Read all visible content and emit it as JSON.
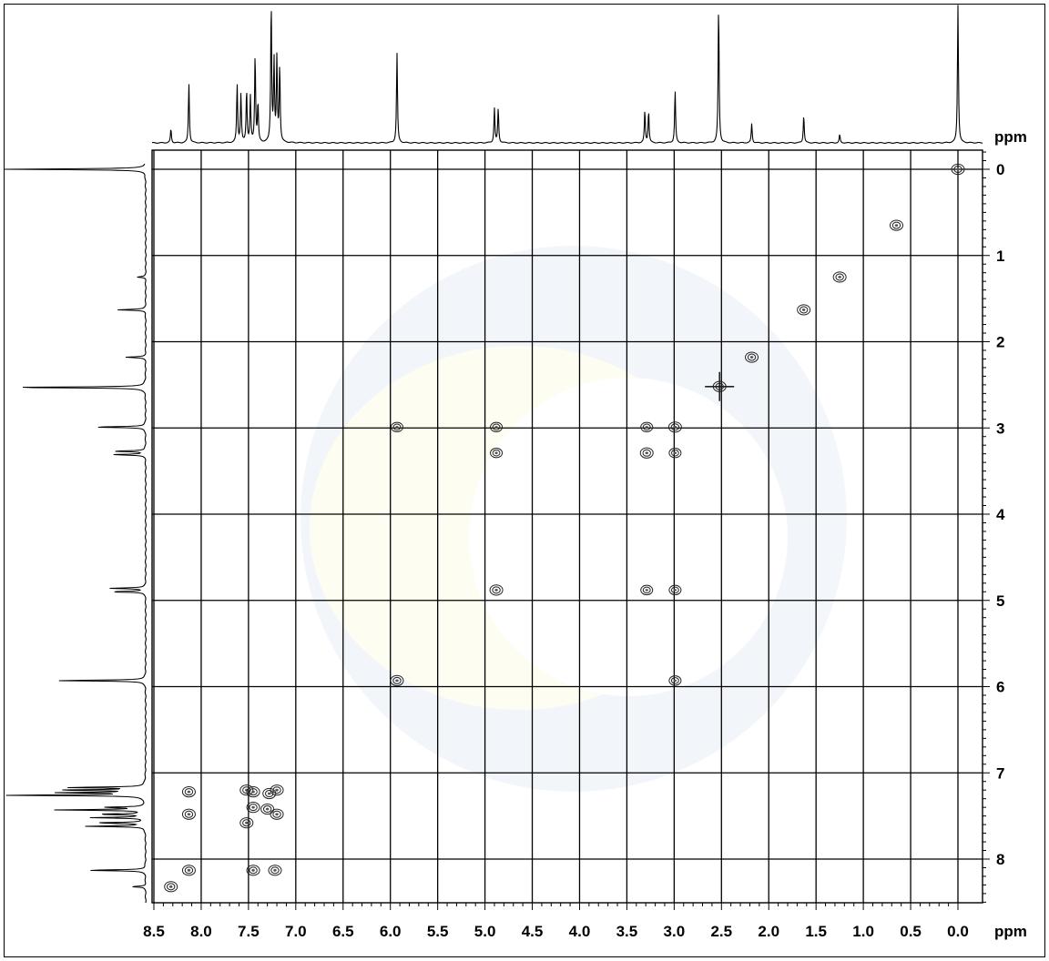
{
  "chart_data": {
    "type": "scatter",
    "subtype": "2D COSY NMR contour plot",
    "title": "",
    "xlabel": "ppm",
    "ylabel": "ppm",
    "x_axis": {
      "range": [
        8.5,
        -0.1
      ],
      "direction": "reversed",
      "tick_labels": [
        "8.5",
        "8.0",
        "7.5",
        "7.0",
        "6.5",
        "6.0",
        "5.5",
        "5.0",
        "4.5",
        "4.0",
        "3.5",
        "3.0",
        "2.5",
        "2.0",
        "1.5",
        "1.0",
        "0.5",
        "0.0"
      ]
    },
    "y_axis": {
      "range": [
        -0.1,
        8.5
      ],
      "direction": "downward",
      "position": "right",
      "tick_labels": [
        "0",
        "1",
        "2",
        "3",
        "4",
        "5",
        "6",
        "7",
        "8"
      ]
    },
    "grid": true,
    "projection_peaks": [
      {
        "ppm": 8.32,
        "height": 0.1
      },
      {
        "ppm": 8.13,
        "height": 0.43
      },
      {
        "ppm": 7.62,
        "height": 0.42
      },
      {
        "ppm": 7.58,
        "height": 0.35
      },
      {
        "ppm": 7.52,
        "height": 0.38
      },
      {
        "ppm": 7.48,
        "height": 0.33
      },
      {
        "ppm": 7.43,
        "height": 0.63
      },
      {
        "ppm": 7.4,
        "height": 0.28
      },
      {
        "ppm": 7.26,
        "height": 1.0
      },
      {
        "ppm": 7.23,
        "height": 0.58
      },
      {
        "ppm": 7.2,
        "height": 0.6
      },
      {
        "ppm": 7.17,
        "height": 0.55
      },
      {
        "ppm": 5.93,
        "height": 0.65
      },
      {
        "ppm": 4.9,
        "height": 0.25
      },
      {
        "ppm": 4.86,
        "height": 0.25
      },
      {
        "ppm": 3.31,
        "height": 0.23
      },
      {
        "ppm": 3.27,
        "height": 0.23
      },
      {
        "ppm": 2.99,
        "height": 0.38
      },
      {
        "ppm": 2.53,
        "height": 1.0
      },
      {
        "ppm": 2.18,
        "height": 0.14
      },
      {
        "ppm": 1.63,
        "height": 0.2
      },
      {
        "ppm": 1.25,
        "height": 0.06
      },
      {
        "ppm": 0.0,
        "height": 1.0
      }
    ],
    "cross_peaks": [
      {
        "x": 0.0,
        "y": 0.0
      },
      {
        "x": 0.65,
        "y": 0.65
      },
      {
        "x": 1.25,
        "y": 1.25
      },
      {
        "x": 1.63,
        "y": 1.63
      },
      {
        "x": 2.18,
        "y": 2.18
      },
      {
        "x": 2.52,
        "y": 2.52
      },
      {
        "x": 2.99,
        "y": 2.99
      },
      {
        "x": 3.29,
        "y": 2.99
      },
      {
        "x": 4.88,
        "y": 2.99
      },
      {
        "x": 5.93,
        "y": 2.99
      },
      {
        "x": 2.99,
        "y": 3.29
      },
      {
        "x": 3.29,
        "y": 3.29
      },
      {
        "x": 4.88,
        "y": 3.29
      },
      {
        "x": 2.99,
        "y": 4.88
      },
      {
        "x": 3.29,
        "y": 4.88
      },
      {
        "x": 4.88,
        "y": 4.88
      },
      {
        "x": 2.99,
        "y": 5.93
      },
      {
        "x": 5.93,
        "y": 5.93
      },
      {
        "x": 8.13,
        "y": 7.22
      },
      {
        "x": 7.52,
        "y": 7.2
      },
      {
        "x": 7.45,
        "y": 7.22
      },
      {
        "x": 7.28,
        "y": 7.24
      },
      {
        "x": 7.2,
        "y": 7.2
      },
      {
        "x": 7.45,
        "y": 7.4
      },
      {
        "x": 7.3,
        "y": 7.42
      },
      {
        "x": 7.2,
        "y": 7.48
      },
      {
        "x": 7.52,
        "y": 7.58
      },
      {
        "x": 8.13,
        "y": 7.48
      },
      {
        "x": 8.13,
        "y": 8.13
      },
      {
        "x": 7.22,
        "y": 8.13
      },
      {
        "x": 7.45,
        "y": 8.13
      },
      {
        "x": 8.32,
        "y": 8.32
      }
    ]
  }
}
